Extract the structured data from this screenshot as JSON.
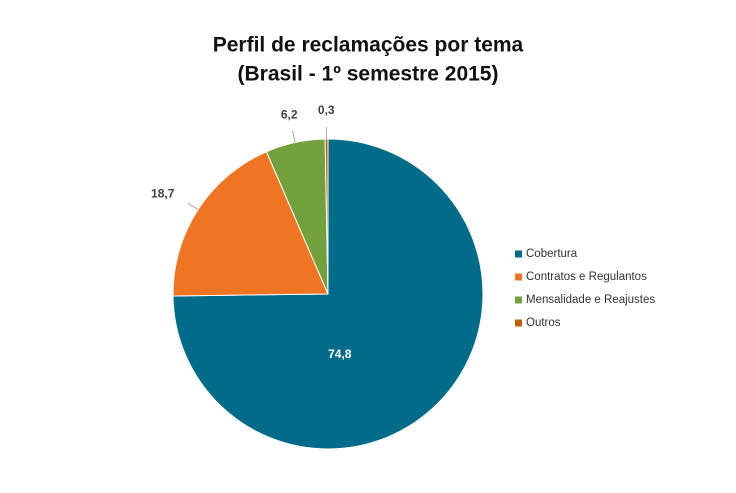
{
  "chart_data": {
    "type": "pie",
    "title": "Perfil de reclamações por tema",
    "subtitle": "(Brasil - 1º semestre 2015)",
    "categories": [
      "Cobertura",
      "Contratos e Regulantos",
      "Mensalidade e Reajustes",
      "Outros"
    ],
    "values": [
      74.8,
      18.7,
      6.2,
      0.3
    ],
    "value_labels": [
      "74,8",
      "18,7",
      "6,2",
      "0,3"
    ],
    "colors": [
      "#006c89",
      "#f07522",
      "#71a03d",
      "#c25e0c"
    ],
    "legend": "right"
  }
}
